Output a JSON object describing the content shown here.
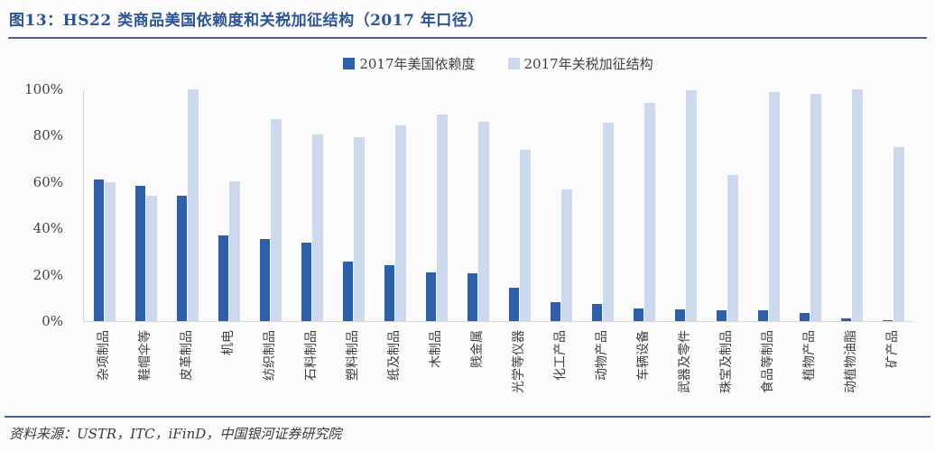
{
  "figure": {
    "title": "图13：HS22 类商品美国依赖度和关税加征结构（2017 年口径）",
    "source": "资料来源：USTR，ITC，iFinD，中国银河证券研究院"
  },
  "colors": {
    "accent_rule": "#49619f",
    "title_blue": "#2c5498",
    "series1": "#2f5fa8",
    "series2": "#ccd8eb",
    "axis_text": "#404040",
    "axis_line": "#d9d9d9"
  },
  "chart_data": {
    "type": "bar",
    "title": "图13：HS22 类商品美国依赖度和关税加征结构（2017 年口径）",
    "categories": [
      "杂项制品",
      "鞋帽伞等",
      "皮革制品",
      "机电",
      "纺织制品",
      "石料制品",
      "塑料制品",
      "纸及制品",
      "木制品",
      "贱金属",
      "光学等仪器",
      "化工产品",
      "动物产品",
      "车辆设备",
      "武器及零件",
      "珠宝及制品",
      "食品等制品",
      "植物产品",
      "动植物油脂",
      "矿产品"
    ],
    "series": [
      {
        "name": "2017年美国依赖度",
        "color": "#2f5fa8",
        "values": [
          61,
          58.5,
          54,
          37,
          35.5,
          34,
          25.5,
          24,
          21,
          20.5,
          14.5,
          8,
          7.5,
          5.5,
          5,
          4.5,
          4.5,
          3.5,
          1,
          0.5
        ]
      },
      {
        "name": "2017年关税加征结构",
        "color": "#ccd8eb",
        "values": [
          60,
          54,
          100,
          60.5,
          87,
          80.5,
          79.5,
          84.5,
          89,
          86,
          74,
          57,
          85.5,
          94,
          99.5,
          63,
          99,
          98,
          100,
          75
        ]
      }
    ],
    "xlabel": "",
    "ylabel": "",
    "ylim": [
      0,
      100
    ],
    "yticks": [
      "0%",
      "20%",
      "40%",
      "60%",
      "80%",
      "100%"
    ],
    "grid": false,
    "legend_position": "top-center"
  }
}
